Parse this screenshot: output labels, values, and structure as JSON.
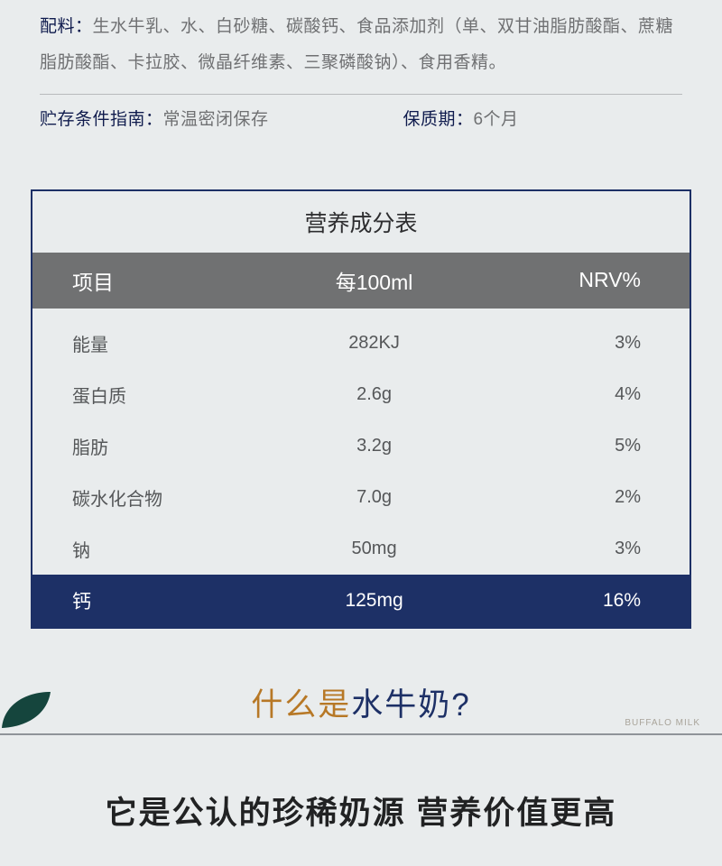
{
  "info": {
    "ingredients_label": "配料：",
    "ingredients_text": "生水牛乳、水、白砂糖、碳酸钙、食品添加剂（单、双甘油脂肪酸酯、蔗糖脂肪酸酯、卡拉胶、微晶纤维素、三聚磷酸钠）、食用香精。",
    "storage_label": "贮存条件指南：",
    "storage_value": "常温密闭保存",
    "shelf_label": "保质期：",
    "shelf_value": "6个月"
  },
  "nutrition": {
    "title": "营养成分表",
    "columns": [
      "项目",
      "每100ml",
      "NRV%"
    ],
    "rows": [
      {
        "name": "能量",
        "amount": "282KJ",
        "nrv": "3%",
        "highlight": false
      },
      {
        "name": "蛋白质",
        "amount": "2.6g",
        "nrv": "4%",
        "highlight": false
      },
      {
        "name": "脂肪",
        "amount": "3.2g",
        "nrv": "5%",
        "highlight": false
      },
      {
        "name": "碳水化合物",
        "amount": "7.0g",
        "nrv": "2%",
        "highlight": false
      },
      {
        "name": "钠",
        "amount": "50mg",
        "nrv": "3%",
        "highlight": false
      },
      {
        "name": "钙",
        "amount": "125mg",
        "nrv": "16%",
        "highlight": true
      }
    ],
    "colors": {
      "border": "#1d3066",
      "header_bg": "#707172",
      "highlight_bg": "#1d3066",
      "text": "#555759",
      "title_text": "#2d2d2f"
    }
  },
  "heading": {
    "part1": "什么是",
    "part2": "水牛奶?",
    "side_label": "BUFFALO MILK",
    "leaf_color": "#15453d"
  },
  "subheading": "它是公认的珍稀奶源 营养价值更高"
}
